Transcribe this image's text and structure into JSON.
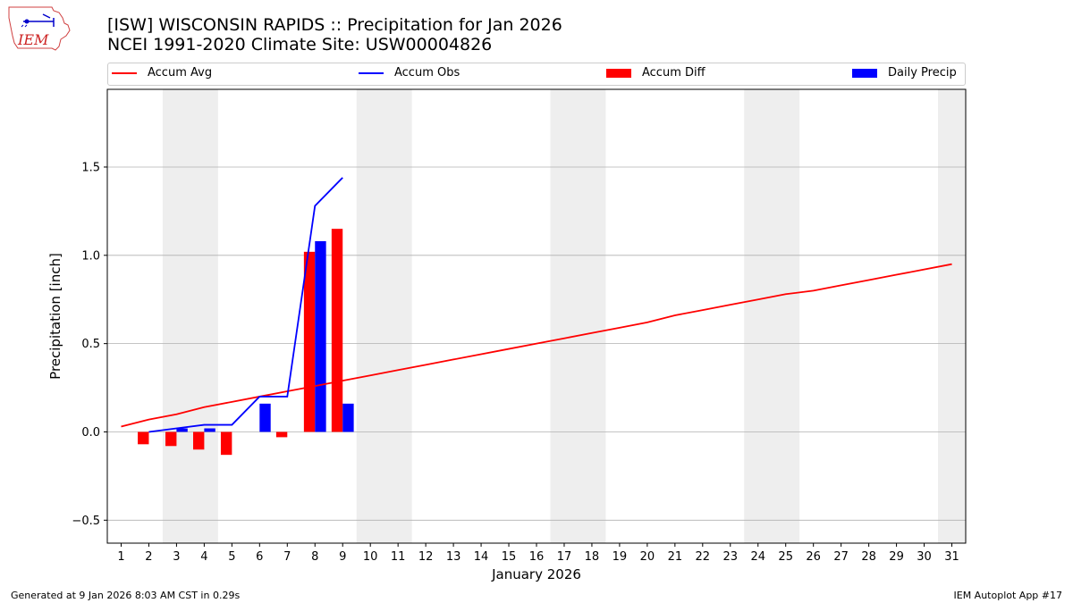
{
  "logo": {
    "text": "IEM"
  },
  "header": {
    "title_line1": "[ISW] WISCONSIN RAPIDS :: Precipitation for Jan 2026",
    "title_line2": "NCEI 1991-2020 Climate Site: USW00004826"
  },
  "legend": {
    "items": [
      {
        "label": "Accum Avg",
        "kind": "line",
        "color": "#ff0000"
      },
      {
        "label": "Accum Obs",
        "kind": "line",
        "color": "#0000ff"
      },
      {
        "label": "Accum Diff",
        "kind": "bar",
        "color": "#ff0000"
      },
      {
        "label": "Daily Precip",
        "kind": "bar",
        "color": "#0000ff"
      }
    ]
  },
  "footer": {
    "generated": "Generated at 9 Jan 2026 8:03 AM CST in 0.29s",
    "app": "IEM Autoplot App #17"
  },
  "colors": {
    "avg": "#ff0000",
    "obs": "#0000ff",
    "weekend": "#eeeeee",
    "grid": "#b0b0b0"
  },
  "chart_data": {
    "type": "bar",
    "title": "[ISW] WISCONSIN RAPIDS :: Precipitation for Jan 2026",
    "subtitle": "NCEI 1991-2020 Climate Site: USW00004826",
    "xlabel": "January 2026",
    "ylabel": "Precipitation [inch]",
    "xlim": [
      0.5,
      31.5
    ],
    "ylim": [
      -0.63,
      1.94
    ],
    "yticks": [
      -0.5,
      0.0,
      0.5,
      1.0,
      1.5
    ],
    "ytick_labels": [
      "−0.5",
      "0.0",
      "0.5",
      "1.0",
      "1.5"
    ],
    "xticks": [
      1,
      2,
      3,
      4,
      5,
      6,
      7,
      8,
      9,
      10,
      11,
      12,
      13,
      14,
      15,
      16,
      17,
      18,
      19,
      20,
      21,
      22,
      23,
      24,
      25,
      26,
      27,
      28,
      29,
      30,
      31
    ],
    "shaded_weekends": [
      [
        3,
        4
      ],
      [
        10,
        11
      ],
      [
        17,
        18
      ],
      [
        24,
        25
      ],
      [
        31,
        31
      ]
    ],
    "grid": "horizontal",
    "legend_position": "top",
    "series": [
      {
        "name": "Accum Avg",
        "type": "line",
        "color": "#ff0000",
        "x": [
          1,
          2,
          3,
          4,
          5,
          6,
          7,
          8,
          9,
          10,
          11,
          12,
          13,
          14,
          15,
          16,
          17,
          18,
          19,
          20,
          21,
          22,
          23,
          24,
          25,
          26,
          27,
          28,
          29,
          30,
          31
        ],
        "values": [
          0.03,
          0.07,
          0.1,
          0.14,
          0.17,
          0.2,
          0.23,
          0.26,
          0.29,
          0.32,
          0.35,
          0.38,
          0.41,
          0.44,
          0.47,
          0.5,
          0.53,
          0.56,
          0.59,
          0.62,
          0.66,
          0.69,
          0.72,
          0.75,
          0.78,
          0.8,
          0.83,
          0.86,
          0.89,
          0.92,
          0.95
        ]
      },
      {
        "name": "Accum Obs",
        "type": "line",
        "color": "#0000ff",
        "x": [
          2,
          3,
          4,
          5,
          6,
          7,
          8,
          9
        ],
        "values": [
          0.0,
          0.02,
          0.04,
          0.04,
          0.2,
          0.2,
          1.28,
          1.44
        ]
      },
      {
        "name": "Accum Diff",
        "type": "bar",
        "color": "#ff0000",
        "x": [
          2,
          3,
          4,
          5,
          6,
          7,
          8,
          9
        ],
        "values": [
          -0.07,
          -0.08,
          -0.1,
          -0.13,
          0.0,
          -0.03,
          1.02,
          1.15
        ]
      },
      {
        "name": "Daily Precip",
        "type": "bar",
        "color": "#0000ff",
        "x": [
          2,
          3,
          4,
          5,
          6,
          7,
          8,
          9
        ],
        "values": [
          0.0,
          0.02,
          0.02,
          0.0,
          0.16,
          0.0,
          1.08,
          0.16
        ]
      }
    ]
  }
}
